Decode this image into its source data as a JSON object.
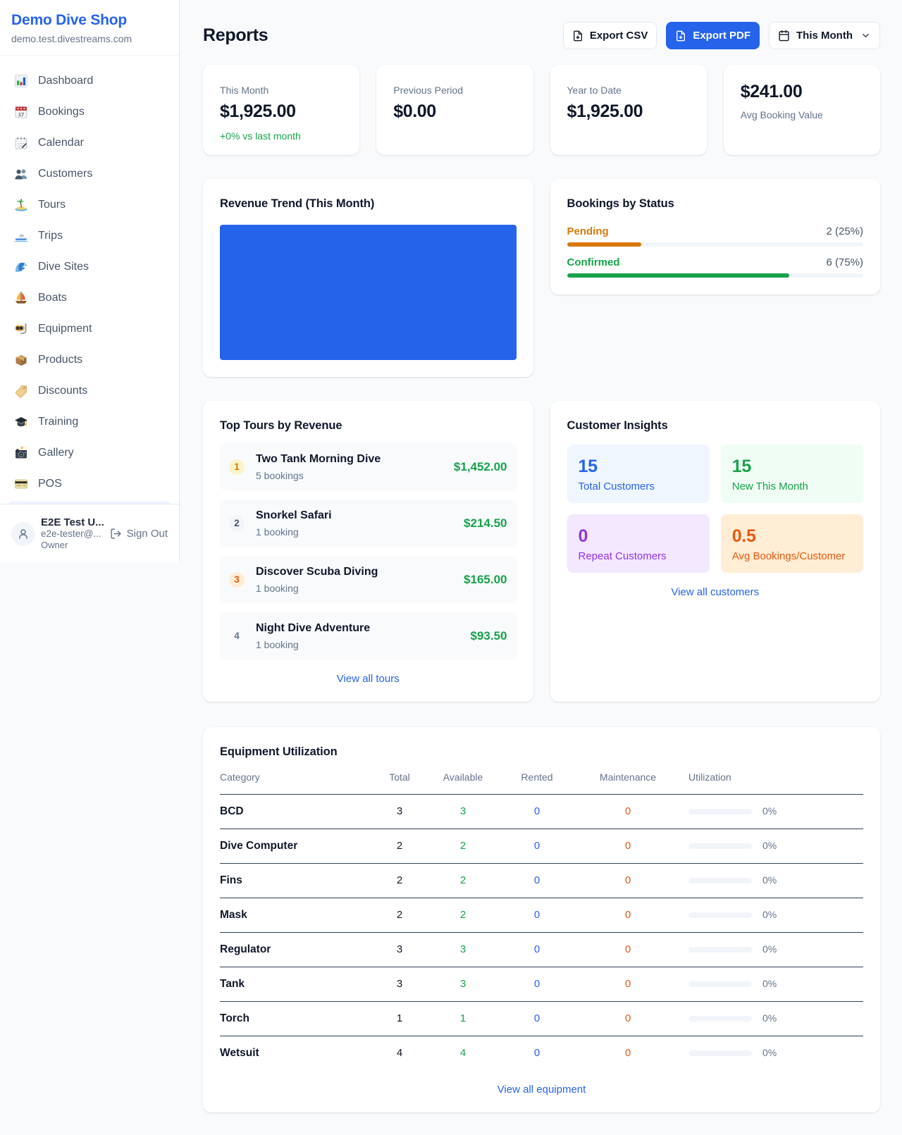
{
  "sidebar": {
    "brand": "Demo Dive Shop",
    "domain": "demo.test.divestreams.com",
    "items": [
      {
        "label": "Dashboard"
      },
      {
        "label": "Bookings"
      },
      {
        "label": "Calendar"
      },
      {
        "label": "Customers"
      },
      {
        "label": "Tours"
      },
      {
        "label": "Trips"
      },
      {
        "label": "Dive Sites"
      },
      {
        "label": "Boats"
      },
      {
        "label": "Equipment"
      },
      {
        "label": "Products"
      },
      {
        "label": "Discounts"
      },
      {
        "label": "Training"
      },
      {
        "label": "Gallery"
      },
      {
        "label": "POS"
      }
    ],
    "user": {
      "name": "E2E Test U...",
      "email": "e2e-tester@...",
      "role": "Owner",
      "sign_out_label": "Sign Out"
    }
  },
  "header": {
    "title": "Reports",
    "export_csv_label": "Export CSV",
    "export_pdf_label": "Export PDF",
    "period_label": "This Month"
  },
  "stats": [
    {
      "label": "This Month",
      "value": "$1,925.00",
      "delta": "+0% vs last month"
    },
    {
      "label": "Previous Period",
      "value": "$0.00"
    },
    {
      "label": "Year to Date",
      "value": "$1,925.00"
    },
    {
      "label": "Avg Booking Value",
      "value": "$241.00"
    }
  ],
  "revenue_trend": {
    "title": "Revenue Trend (This Month)",
    "chart_color": "#2563eb"
  },
  "bookings_by_status": {
    "title": "Bookings by Status",
    "rows": [
      {
        "label": "Pending",
        "count_text": "2 (25%)",
        "percent": 25,
        "color": "#d97706"
      },
      {
        "label": "Confirmed",
        "count_text": "6 (75%)",
        "percent": 75,
        "color": "#16a34a"
      }
    ]
  },
  "top_tours": {
    "title": "Top Tours by Revenue",
    "rows": [
      {
        "rank": "1",
        "name": "Two Tank Morning Dive",
        "bookings": "5 bookings",
        "revenue": "$1,452.00"
      },
      {
        "rank": "2",
        "name": "Snorkel Safari",
        "bookings": "1 booking",
        "revenue": "$214.50"
      },
      {
        "rank": "3",
        "name": "Discover Scuba Diving",
        "bookings": "1 booking",
        "revenue": "$165.00"
      },
      {
        "rank": "4",
        "name": "Night Dive Adventure",
        "bookings": "1 booking",
        "revenue": "$93.50"
      }
    ],
    "link": "View all tours"
  },
  "customer_insights": {
    "title": "Customer Insights",
    "tiles": [
      {
        "value": "15",
        "label": "Total Customers",
        "theme": "blue"
      },
      {
        "value": "15",
        "label": "New This Month",
        "theme": "green"
      },
      {
        "value": "0",
        "label": "Repeat Customers",
        "theme": "purple"
      },
      {
        "value": "0.5",
        "label": "Avg Bookings/Customer",
        "theme": "orange"
      }
    ],
    "link": "View all customers"
  },
  "equipment": {
    "title": "Equipment Utilization",
    "columns": [
      "Category",
      "Total",
      "Available",
      "Rented",
      "Maintenance",
      "Utilization"
    ],
    "rows": [
      {
        "category": "BCD",
        "total": "3",
        "available": "3",
        "rented": "0",
        "maintenance": "0",
        "utilization": "0%",
        "utilization_pct": 0
      },
      {
        "category": "Dive Computer",
        "total": "2",
        "available": "2",
        "rented": "0",
        "maintenance": "0",
        "utilization": "0%",
        "utilization_pct": 0
      },
      {
        "category": "Fins",
        "total": "2",
        "available": "2",
        "rented": "0",
        "maintenance": "0",
        "utilization": "0%",
        "utilization_pct": 0
      },
      {
        "category": "Mask",
        "total": "2",
        "available": "2",
        "rented": "0",
        "maintenance": "0",
        "utilization": "0%",
        "utilization_pct": 0
      },
      {
        "category": "Regulator",
        "total": "3",
        "available": "3",
        "rented": "0",
        "maintenance": "0",
        "utilization": "0%",
        "utilization_pct": 0
      },
      {
        "category": "Tank",
        "total": "3",
        "available": "3",
        "rented": "0",
        "maintenance": "0",
        "utilization": "0%",
        "utilization_pct": 0
      },
      {
        "category": "Torch",
        "total": "1",
        "available": "1",
        "rented": "0",
        "maintenance": "0",
        "utilization": "0%",
        "utilization_pct": 0
      },
      {
        "category": "Wetsuit",
        "total": "4",
        "available": "4",
        "rented": "0",
        "maintenance": "0",
        "utilization": "0%",
        "utilization_pct": 0
      }
    ],
    "link": "View all equipment"
  }
}
